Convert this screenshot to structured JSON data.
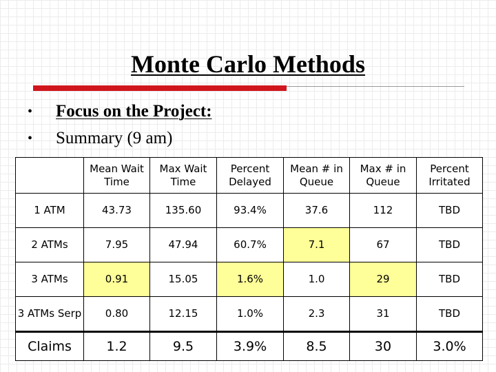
{
  "slide": {
    "title": "Monte Carlo Methods",
    "bullets": [
      {
        "marker": "•",
        "text": "Focus on the Project:"
      },
      {
        "marker": "•",
        "text": "Summary (9 am)"
      }
    ]
  },
  "table": {
    "headers": [
      "",
      "Mean Wait Time",
      "Max Wait Time",
      "Percent Delayed",
      "Mean # in Queue",
      "Max # in Queue",
      "Percent Irritated"
    ],
    "rows": [
      {
        "label": "1 ATM",
        "cells": [
          "43.73",
          "135.60",
          "93.4%",
          "37.6",
          "112",
          "TBD"
        ]
      },
      {
        "label": "2 ATMs",
        "cells": [
          "7.95",
          "47.94",
          "60.7%",
          "7.1",
          "67",
          "TBD"
        ]
      },
      {
        "label": "3 ATMs",
        "cells": [
          "0.91",
          "15.05",
          "1.6%",
          "1.0",
          "29",
          "TBD"
        ]
      },
      {
        "label": "3 ATMs Serp",
        "cells": [
          "0.80",
          "12.15",
          "1.0%",
          "2.3",
          "31",
          "TBD"
        ]
      },
      {
        "label": "Claims",
        "cells": [
          "1.2",
          "9.5",
          "3.9%",
          "8.5",
          "30",
          "3.0%"
        ]
      }
    ],
    "highlight_color": "#ffff99"
  },
  "colors": {
    "accent_bar": "#d0161c"
  }
}
